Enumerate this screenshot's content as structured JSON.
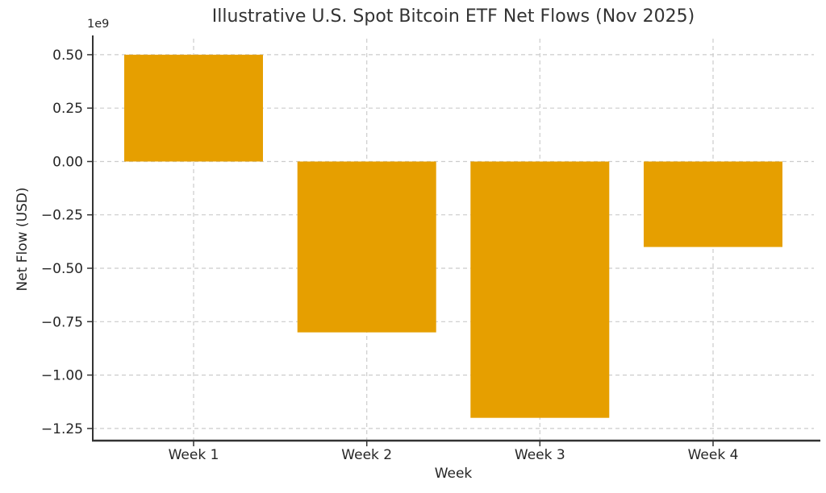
{
  "chart_data": {
    "type": "bar",
    "title": "Illustrative U.S. Spot Bitcoin ETF Net Flows (Nov 2025)",
    "xlabel": "Week",
    "ylabel": "Net Flow (USD)",
    "y_offset_text": "1e9",
    "categories": [
      "Week 1",
      "Week 2",
      "Week 3",
      "Week 4"
    ],
    "values_usd": [
      500000000,
      -800000000,
      -1200000000,
      -400000000
    ],
    "values_in_billions": [
      0.5,
      -0.8,
      -1.2,
      -0.4
    ],
    "yticks": [
      0.5,
      0.25,
      0.0,
      -0.25,
      -0.5,
      -0.75,
      -1.0,
      -1.25
    ],
    "ytick_labels": [
      "0.50",
      "0.25",
      "0.00",
      "−0.25",
      "−0.50",
      "−0.75",
      "−1.00",
      "−1.25"
    ],
    "ylim": [
      -1.31,
      0.58
    ],
    "grid": {
      "visible": true,
      "style": "dashed",
      "color": "#cccccc"
    },
    "bar_color": "#E69F00",
    "axis_color": "#333333",
    "text_color": "#262626",
    "background": "#ffffff",
    "legend": "none"
  }
}
